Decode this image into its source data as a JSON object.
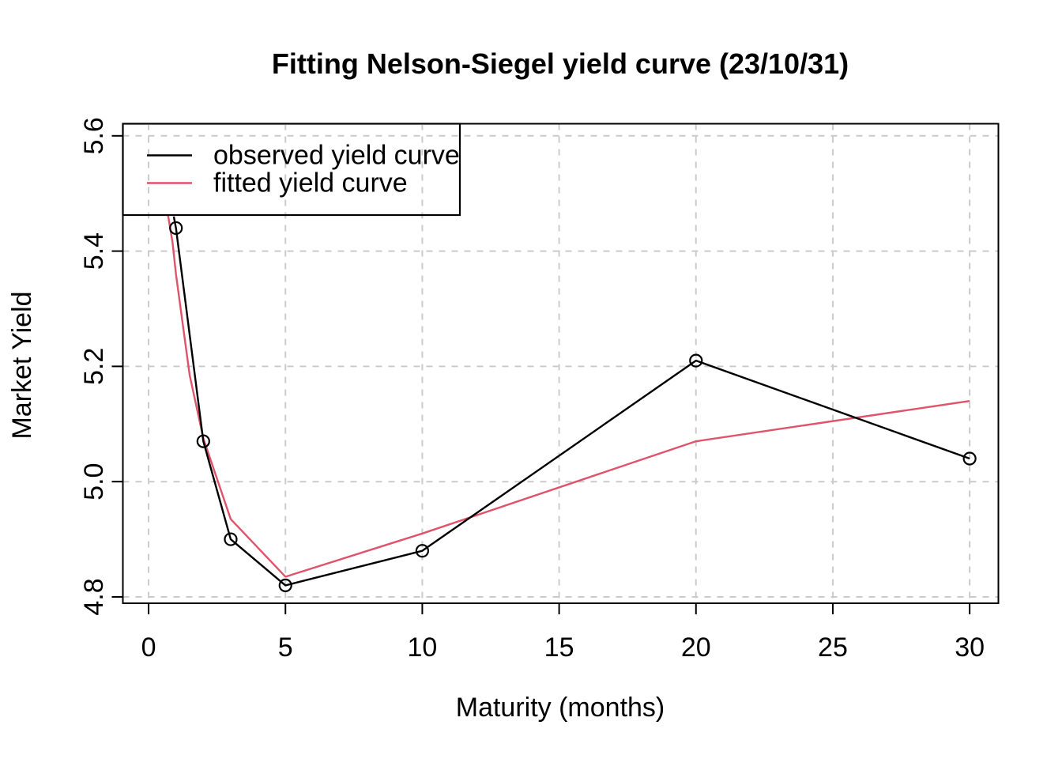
{
  "title": "Fitting Nelson-Siegel yield curve (23/10/31)",
  "axes": {
    "xlabel": "Maturity (months)",
    "ylabel": "Market Yield"
  },
  "legend": {
    "position": "top-left",
    "items": [
      {
        "label": "observed yield curve",
        "color": "#000000"
      },
      {
        "label": "fitted yield curve",
        "color": "#DF536B"
      }
    ]
  },
  "colors": {
    "observed": "#000000",
    "fitted": "#DF536B",
    "grid": "#CBCBCB",
    "frame": "#000000",
    "background": "#FFFFFF"
  },
  "chart_data": {
    "type": "line",
    "title": "Fitting Nelson-Siegel yield curve (23/10/31)",
    "xlabel": "Maturity (months)",
    "ylabel": "Market Yield",
    "xlim": [
      -0.94,
      31.05
    ],
    "ylim": [
      4.789,
      5.621
    ],
    "x_ticks": [
      0,
      5,
      10,
      15,
      20,
      25,
      30
    ],
    "x_tick_labels": [
      "0",
      "5",
      "10",
      "15",
      "20",
      "25",
      "30"
    ],
    "y_ticks": [
      4.8,
      5.0,
      5.2,
      5.4,
      5.6
    ],
    "y_tick_labels": [
      "4.8",
      "5.0",
      "5.2",
      "5.4",
      "5.6"
    ],
    "grid": true,
    "grid_style": "dashed",
    "legend_position": "top-left",
    "series": [
      {
        "name": "observed yield curve",
        "color": "#000000",
        "marker": "circle",
        "maturities": [
          1,
          2,
          3,
          5,
          10,
          20,
          30
        ],
        "yields": [
          5.44,
          5.07,
          4.9,
          4.82,
          4.88,
          5.21,
          5.04
        ],
        "lead_in_point": [
          0.92,
          5.46
        ]
      },
      {
        "name": "fitted yield curve",
        "color": "#DF536B",
        "marker": "none",
        "curve_points": [
          [
            0.7,
            5.465
          ],
          [
            0.875,
            5.415
          ],
          [
            1,
            5.36
          ],
          [
            1.2,
            5.29
          ],
          [
            1.5,
            5.185
          ],
          [
            2,
            5.075
          ],
          [
            3,
            4.935
          ],
          [
            5,
            4.835
          ],
          [
            10,
            4.91
          ],
          [
            20,
            5.07
          ],
          [
            30,
            5.14
          ]
        ]
      }
    ]
  }
}
